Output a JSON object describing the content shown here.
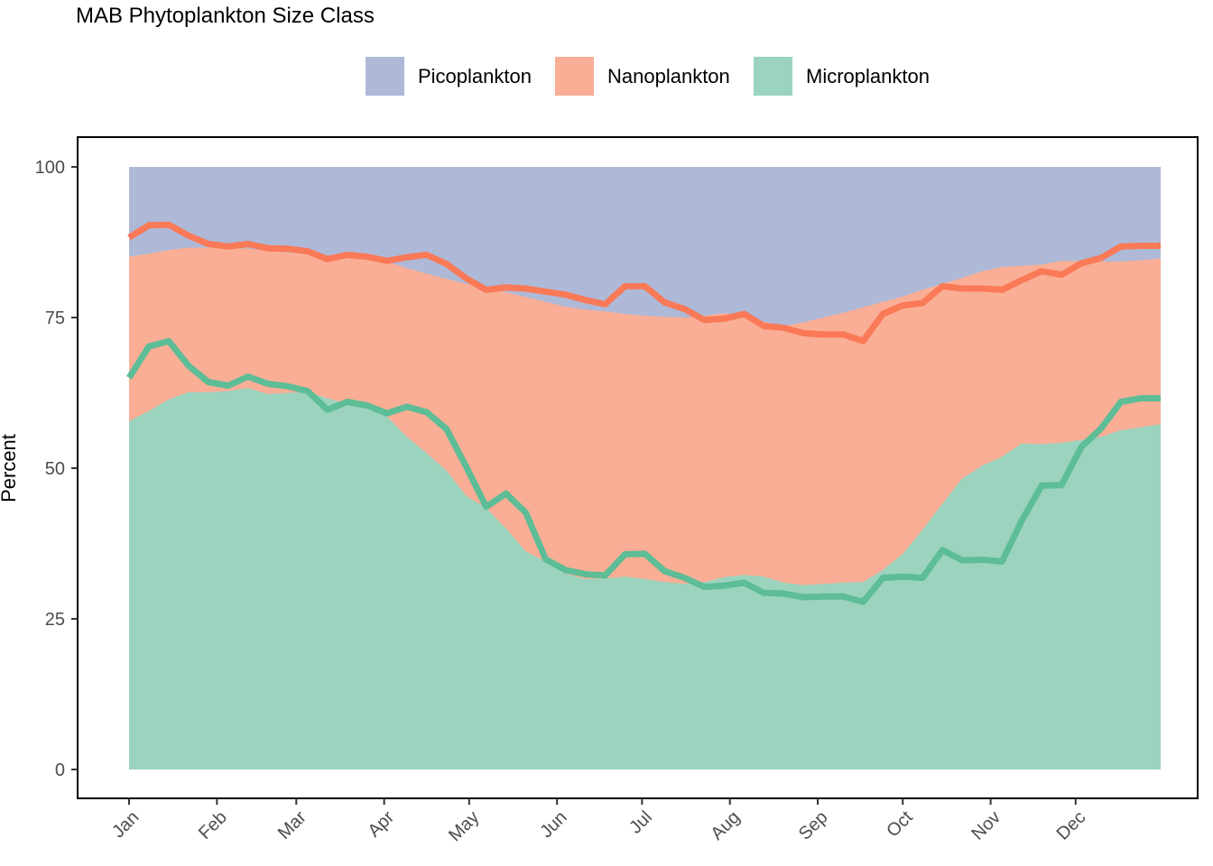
{
  "chart_data": {
    "type": "area",
    "title": "MAB Phytoplankton Size Class",
    "xlabel": "",
    "ylabel": "Percent",
    "ylim": [
      0,
      100
    ],
    "yticks": [
      0,
      25,
      50,
      75,
      100
    ],
    "month_labels": [
      "Jan",
      "Feb",
      "Mar",
      "Apr",
      "May",
      "Jun",
      "Jul",
      "Aug",
      "Sep",
      "Oct",
      "Nov",
      "Dec"
    ],
    "legend_position": "top",
    "grid": false,
    "week": [
      1,
      2,
      3,
      4,
      5,
      6,
      7,
      8,
      9,
      10,
      11,
      12,
      13,
      14,
      15,
      16,
      17,
      18,
      19,
      20,
      21,
      22,
      23,
      24,
      25,
      26,
      27,
      28,
      29,
      30,
      31,
      32,
      33,
      34,
      35,
      36,
      37,
      38,
      39,
      40,
      41,
      42,
      43,
      44,
      45,
      46,
      47,
      48,
      49,
      50,
      51,
      52,
      53
    ],
    "series": [
      {
        "name": "Picoplankton",
        "kind": "area",
        "color": "#aeb9d8",
        "note": "upper band: from Nanoplankton boundary to 100",
        "top": [
          100,
          100,
          100,
          100,
          100,
          100,
          100,
          100,
          100,
          100,
          100,
          100,
          100,
          100,
          100,
          100,
          100,
          100,
          100,
          100,
          100,
          100,
          100,
          100,
          100,
          100,
          100,
          100,
          100,
          100,
          100,
          100,
          100,
          100,
          100,
          100,
          100,
          100,
          100,
          100,
          100,
          100,
          100,
          100,
          100,
          100,
          100,
          100,
          100,
          100,
          100,
          100,
          100
        ]
      },
      {
        "name": "Nanoplankton",
        "kind": "area",
        "color": "#f9ae95",
        "top": [
          85.1,
          85.6,
          86.2,
          86.6,
          86.6,
          86.6,
          86.4,
          86.1,
          85.8,
          85.5,
          85.2,
          84.9,
          84.6,
          84.3,
          83.2,
          82.3,
          81.4,
          80.6,
          79.9,
          79.2,
          78.4,
          77.6,
          76.8,
          76.3,
          76.0,
          75.6,
          75.3,
          75.1,
          75.0,
          75.3,
          75.7,
          75.3,
          74.3,
          73.6,
          74.2,
          75.0,
          75.8,
          76.7,
          77.6,
          78.5,
          79.6,
          80.6,
          81.6,
          82.7,
          83.4,
          83.6,
          83.8,
          84.4,
          84.4,
          84.3,
          84.3,
          84.5,
          84.8
        ]
      },
      {
        "name": "Microplankton",
        "kind": "area",
        "color": "#9bd3be",
        "top": [
          57.8,
          59.5,
          61.4,
          62.6,
          62.6,
          62.8,
          63.3,
          62.3,
          62.5,
          62.6,
          61.6,
          60.7,
          59.9,
          58.6,
          55.2,
          52.5,
          49.6,
          45.4,
          43.4,
          40.0,
          36.2,
          34.5,
          32.5,
          31.6,
          31.7,
          32.0,
          31.6,
          31.1,
          30.8,
          31.1,
          31.9,
          32.3,
          32.0,
          31.0,
          30.6,
          30.8,
          31.0,
          31.1,
          33.1,
          35.8,
          39.8,
          44.1,
          48.3,
          50.4,
          51.9,
          54.1,
          54.0,
          54.2,
          54.7,
          55.2,
          56.3,
          56.8,
          57.3
        ]
      },
      {
        "name": "Nanoplankton line",
        "kind": "line",
        "color": "#fa7957",
        "values": [
          88.3,
          90.3,
          90.4,
          88.6,
          87.2,
          86.8,
          87.2,
          86.5,
          86.4,
          86.0,
          84.7,
          85.4,
          85.1,
          84.4,
          85.0,
          85.4,
          83.9,
          81.5,
          79.6,
          80.0,
          79.8,
          79.3,
          78.8,
          77.9,
          77.2,
          80.2,
          80.2,
          77.5,
          76.4,
          74.6,
          74.8,
          75.6,
          73.6,
          73.3,
          72.4,
          72.2,
          72.2,
          71.1,
          75.6,
          77.0,
          77.4,
          80.2,
          79.8,
          79.8,
          79.6,
          81.2,
          82.7,
          82.1,
          84.0,
          84.9,
          86.8,
          86.9,
          86.9
        ]
      },
      {
        "name": "Microplankton line",
        "kind": "line",
        "color": "#5cbd96",
        "values": [
          65.0,
          70.2,
          71.1,
          67.0,
          64.3,
          63.7,
          65.2,
          64.0,
          63.6,
          62.8,
          59.7,
          61.0,
          60.4,
          59.1,
          60.2,
          59.3,
          56.5,
          50.2,
          43.6,
          45.8,
          42.6,
          34.9,
          33.1,
          32.4,
          32.2,
          35.7,
          35.8,
          32.9,
          31.8,
          30.3,
          30.5,
          31.0,
          29.3,
          29.2,
          28.6,
          28.7,
          28.7,
          27.8,
          31.8,
          32.0,
          31.8,
          36.4,
          34.7,
          34.8,
          34.5,
          41.3,
          47.1,
          47.2,
          53.5,
          56.6,
          61.0,
          61.6,
          61.6
        ]
      }
    ]
  },
  "legend": {
    "items": [
      {
        "label": "Picoplankton",
        "color": "#aeb9d8"
      },
      {
        "label": "Nanoplankton",
        "color": "#f9ae95"
      },
      {
        "label": "Microplankton",
        "color": "#9bd3be"
      }
    ]
  }
}
